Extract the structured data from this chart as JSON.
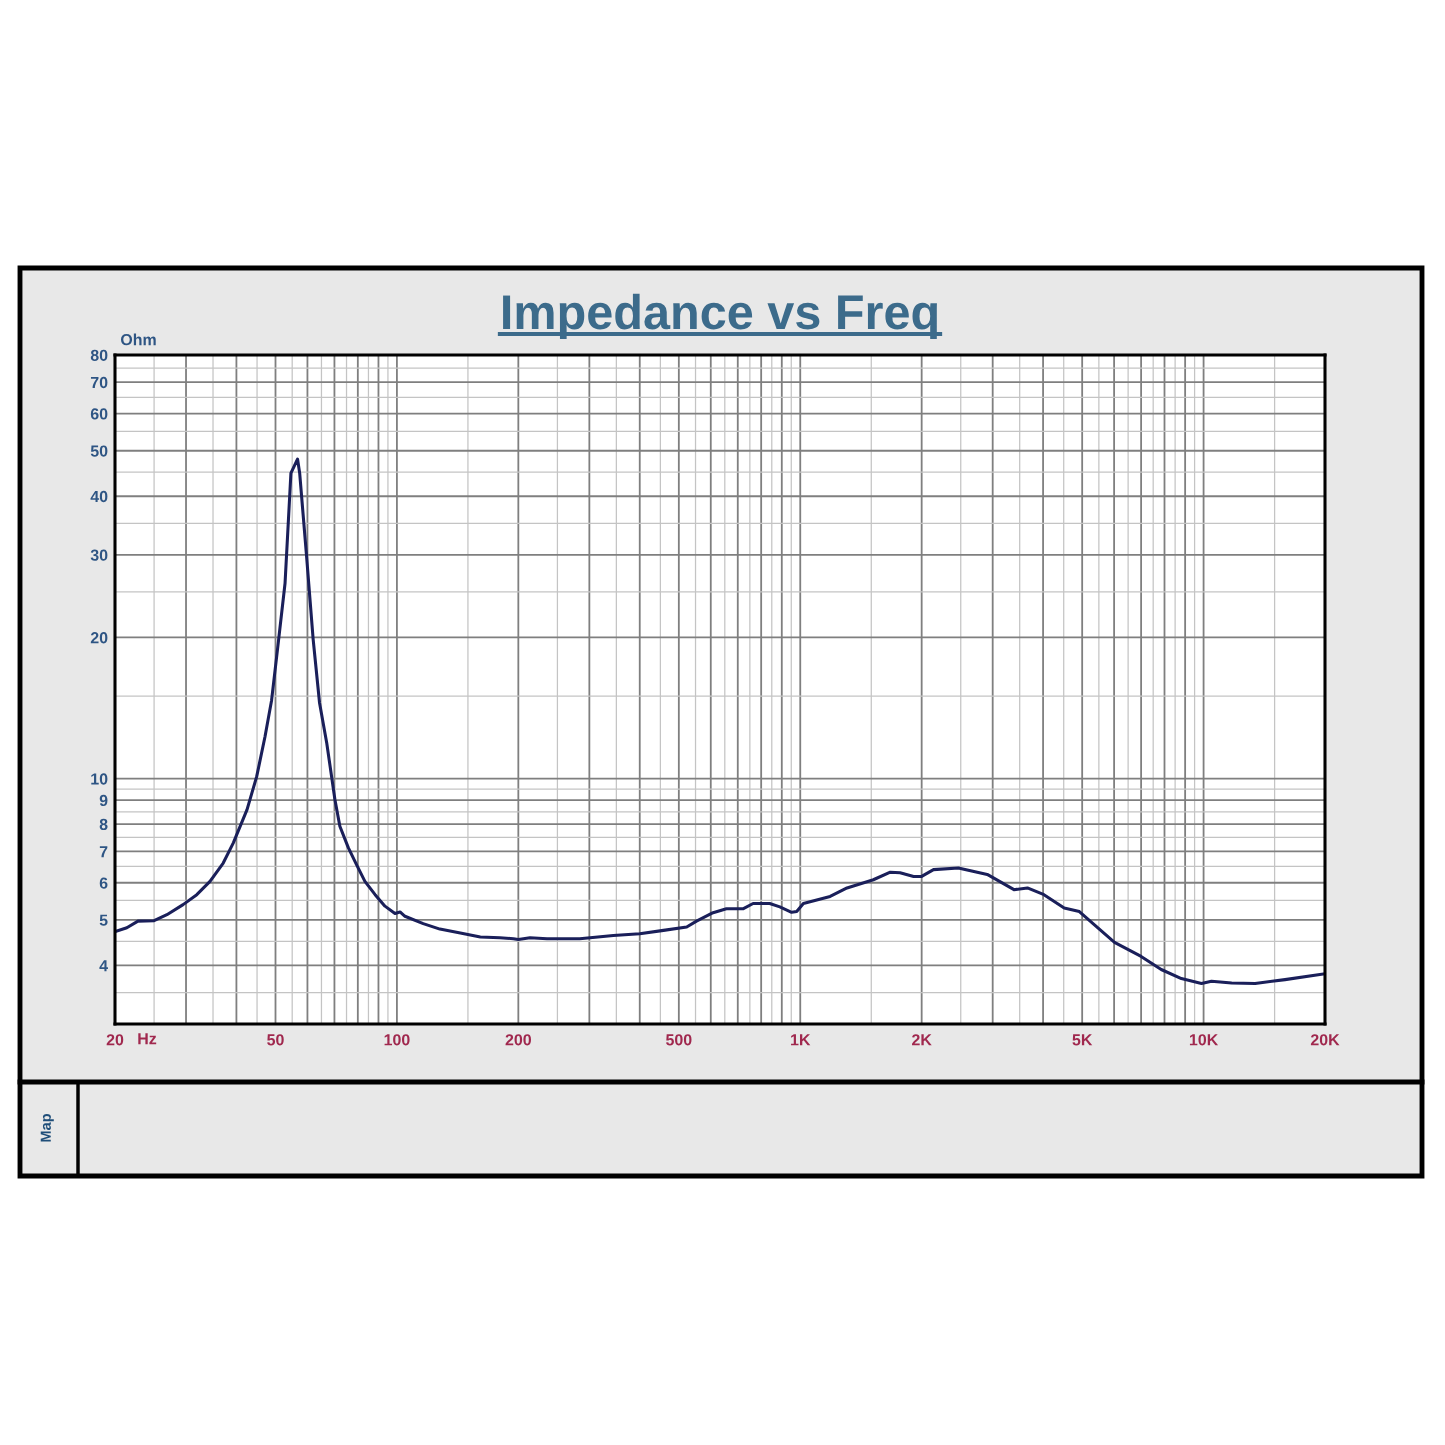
{
  "chart_data": {
    "type": "line",
    "title": "Impedance vs Freq",
    "xlabel": "Hz",
    "ylabel": "Ohm",
    "annotations": [
      "Map"
    ],
    "log": "xy",
    "grid": true,
    "xlim": [
      20,
      20000
    ],
    "ylim": [
      3,
      80
    ],
    "xticks": [
      20,
      {
        "value": 25,
        "label": null
      },
      {
        "value": 30,
        "label": null
      },
      {
        "value": 35,
        "label": null
      },
      {
        "value": 40,
        "label": null
      },
      {
        "value": 45,
        "label": null
      },
      50,
      {
        "value": 55,
        "label": null
      },
      {
        "value": 60,
        "label": null
      },
      {
        "value": 65,
        "label": null
      },
      {
        "value": 70,
        "label": null
      },
      {
        "value": 75,
        "label": null
      },
      {
        "value": 80,
        "label": null
      },
      {
        "value": 85,
        "label": null
      },
      {
        "value": 90,
        "label": null
      },
      {
        "value": 95,
        "label": null
      },
      100,
      {
        "value": 150,
        "label": null
      },
      200,
      {
        "value": 250,
        "label": null
      },
      {
        "value": 300,
        "label": null
      },
      {
        "value": 350,
        "label": null
      },
      {
        "value": 400,
        "label": null
      },
      {
        "value": 450,
        "label": null
      },
      500,
      {
        "value": 550,
        "label": null
      },
      {
        "value": 600,
        "label": null
      },
      {
        "value": 650,
        "label": null
      },
      {
        "value": 700,
        "label": null
      },
      {
        "value": 750,
        "label": null
      },
      {
        "value": 800,
        "label": null
      },
      {
        "value": 850,
        "label": null
      },
      {
        "value": 900,
        "label": null
      },
      {
        "value": 950,
        "label": null
      },
      {
        "value": 1000,
        "label": "1K"
      },
      {
        "value": 1500,
        "label": null
      },
      {
        "value": 2000,
        "label": "2K"
      },
      {
        "value": 2500,
        "label": null
      },
      {
        "value": 3000,
        "label": null
      },
      {
        "value": 3500,
        "label": null
      },
      {
        "value": 4000,
        "label": null
      },
      {
        "value": 4500,
        "label": null
      },
      {
        "value": 5000,
        "label": "5K"
      },
      {
        "value": 5500,
        "label": null
      },
      {
        "value": 6000,
        "label": null
      },
      {
        "value": 6500,
        "label": null
      },
      {
        "value": 7000,
        "label": null
      },
      {
        "value": 7500,
        "label": null
      },
      {
        "value": 8000,
        "label": null
      },
      {
        "value": 8500,
        "label": null
      },
      {
        "value": 9000,
        "label": null
      },
      {
        "value": 9500,
        "label": null
      },
      {
        "value": 10000,
        "label": "10K"
      },
      {
        "value": 15000,
        "label": null
      },
      {
        "value": 20000,
        "label": "20K"
      }
    ],
    "yticks": [
      {
        "value": 3.5,
        "label": null
      },
      4,
      {
        "value": 4.5,
        "label": null
      },
      5,
      {
        "value": 5.5,
        "label": null
      },
      6,
      {
        "value": 6.5,
        "label": null
      },
      7,
      {
        "value": 7.5,
        "label": null
      },
      8,
      {
        "value": 8.5,
        "label": null
      },
      9,
      {
        "value": 9.5,
        "label": null
      },
      10,
      {
        "value": 15,
        "label": null
      },
      20,
      {
        "value": 25,
        "label": null
      },
      30,
      {
        "value": 35,
        "label": null
      },
      40,
      {
        "value": 45,
        "label": null
      },
      50,
      {
        "value": 55,
        "label": null
      },
      60,
      {
        "value": 65,
        "label": null
      },
      70,
      {
        "value": 75,
        "label": null
      },
      80
    ],
    "x": [
      20,
      21.4,
      22.8,
      25,
      26.9,
      29.5,
      31.9,
      34.4,
      37.1,
      39.3,
      42.5,
      44.9,
      47.1,
      48.9,
      50.8,
      52.8,
      54.6,
      56.7,
      57.4,
      59.7,
      62.0,
      64.3,
      67.0,
      70.2,
      72.2,
      75.8,
      79.4,
      83.3,
      88.3,
      93.4,
      98.9,
      101.8,
      104.7,
      116.2,
      127.8,
      143.6,
      161,
      180,
      194.5,
      200,
      213.8,
      235.6,
      284,
      344,
      400,
      458,
      523,
      553,
      608,
      656,
      721,
      764,
      840,
      890,
      952,
      980,
      1018,
      1186,
      1306,
      1518,
      1672,
      1768,
      1910,
      2000,
      2140,
      2466,
      2908,
      3388,
      3658,
      4020,
      4512,
      4920,
      5470,
      6014,
      7000,
      7852,
      8808,
      9880,
      10460,
      11740,
      13420,
      15920,
      20000
    ],
    "series": [
      {
        "color": "#1a1f5a",
        "values": [
          4.72,
          4.81,
          4.97,
          4.98,
          5.13,
          5.39,
          5.66,
          6.04,
          6.61,
          7.3,
          8.59,
          10.1,
          12.3,
          14.7,
          19.5,
          26.1,
          44.8,
          48.0,
          44.8,
          29.8,
          19.8,
          14.5,
          11.9,
          9.02,
          7.92,
          7.12,
          6.56,
          6.04,
          5.66,
          5.35,
          5.16,
          5.2,
          5.09,
          4.91,
          4.78,
          4.69,
          4.6,
          4.58,
          4.56,
          4.54,
          4.58,
          4.56,
          4.56,
          4.63,
          4.67,
          4.75,
          4.83,
          4.97,
          5.18,
          5.28,
          5.28,
          5.42,
          5.42,
          5.33,
          5.19,
          5.21,
          5.42,
          5.61,
          5.85,
          6.09,
          6.32,
          6.3,
          6.19,
          6.19,
          6.4,
          6.45,
          6.25,
          5.8,
          5.85,
          5.66,
          5.3,
          5.21,
          4.81,
          4.48,
          4.18,
          3.92,
          3.75,
          3.66,
          3.7,
          3.67,
          3.66,
          3.73,
          3.84
        ]
      }
    ]
  }
}
